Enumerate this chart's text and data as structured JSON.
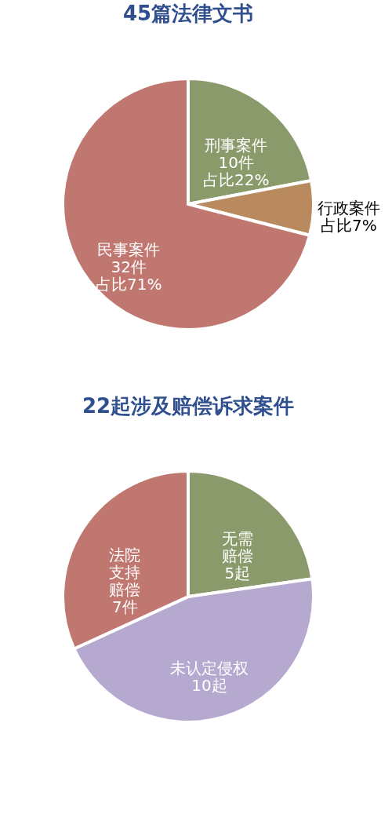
{
  "chart_data": [
    {
      "type": "pie",
      "title": "45篇法律文书",
      "categories": [
        "刑事案件",
        "行政案件",
        "民事案件"
      ],
      "values": [
        22,
        7,
        71
      ],
      "value_labels": [
        "10件占比22%",
        "占比7%",
        "32件占比71%"
      ],
      "colors": [
        "#8a9a6a",
        "#b98a5e",
        "#c0776f"
      ]
    },
    {
      "type": "pie",
      "title": "22起涉及赔偿诉求案件",
      "categories": [
        "无需赔偿",
        "未认定侵权",
        "法院支持赔偿"
      ],
      "values": [
        5,
        10,
        7
      ],
      "value_labels": [
        "5起",
        "10起",
        "7件"
      ],
      "colors": [
        "#8a9a6a",
        "#b5a9cf",
        "#c0776f"
      ]
    }
  ]
}
